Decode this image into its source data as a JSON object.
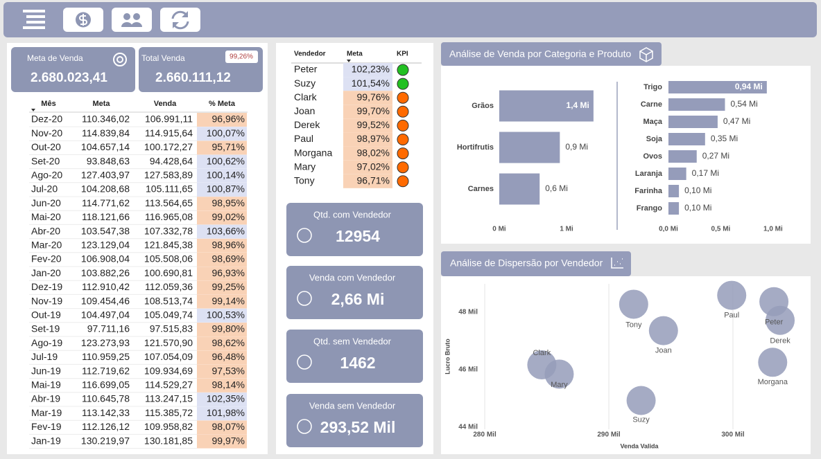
{
  "summary_cards": [
    {
      "label": "Meta de Venda",
      "value": "2.680.023,41"
    },
    {
      "label": "Total Venda",
      "value": "2.660.111,12",
      "badge": "99,26%"
    }
  ],
  "monthly_table": {
    "columns": [
      "Mês",
      "Meta",
      "Venda",
      "% Meta"
    ],
    "rows": [
      [
        "Dez-20",
        "110.346,02",
        "106.991,11",
        "96,96%"
      ],
      [
        "Nov-20",
        "114.839,84",
        "114.915,64",
        "100,07%"
      ],
      [
        "Out-20",
        "104.657,14",
        "100.172,27",
        "95,71%"
      ],
      [
        "Set-20",
        "93.848,63",
        "94.428,64",
        "100,62%"
      ],
      [
        "Ago-20",
        "127.403,97",
        "127.583,89",
        "100,14%"
      ],
      [
        "Jul-20",
        "104.208,68",
        "105.111,65",
        "100,87%"
      ],
      [
        "Jun-20",
        "114.771,62",
        "113.564,65",
        "98,95%"
      ],
      [
        "Mai-20",
        "118.121,66",
        "116.965,08",
        "99,02%"
      ],
      [
        "Abr-20",
        "103.547,38",
        "107.332,78",
        "103,66%"
      ],
      [
        "Mar-20",
        "123.129,04",
        "121.845,38",
        "98,96%"
      ],
      [
        "Fev-20",
        "106.908,04",
        "105.508,06",
        "98,69%"
      ],
      [
        "Jan-20",
        "103.882,26",
        "100.690,81",
        "96,93%"
      ],
      [
        "Dez-19",
        "112.910,42",
        "112.059,36",
        "99,25%"
      ],
      [
        "Nov-19",
        "109.454,46",
        "108.513,74",
        "99,14%"
      ],
      [
        "Out-19",
        "104.497,04",
        "105.049,74",
        "100,53%"
      ],
      [
        "Set-19",
        "97.711,16",
        "97.515,83",
        "99,80%"
      ],
      [
        "Ago-19",
        "123.273,93",
        "121.570,90",
        "98,62%"
      ],
      [
        "Jul-19",
        "110.959,25",
        "107.054,09",
        "96,48%"
      ],
      [
        "Jun-19",
        "112.719,62",
        "109.934,69",
        "97,53%"
      ],
      [
        "Mai-19",
        "116.699,05",
        "114.529,27",
        "98,14%"
      ],
      [
        "Abr-19",
        "110.645,78",
        "113.247,15",
        "102,35%"
      ],
      [
        "Mar-19",
        "113.142,33",
        "115.385,72",
        "101,98%"
      ],
      [
        "Fev-19",
        "112.126,12",
        "109.958,82",
        "98,07%"
      ],
      [
        "Jan-19",
        "130.219,97",
        "130.181,85",
        "99,97%"
      ]
    ]
  },
  "seller_table": {
    "columns": [
      "Vendedor",
      "Meta",
      "KPI"
    ],
    "rows": [
      [
        "Peter",
        "102,23%"
      ],
      [
        "Suzy",
        "101,54%"
      ],
      [
        "Clark",
        "99,76%"
      ],
      [
        "Joan",
        "99,70%"
      ],
      [
        "Derek",
        "99,52%"
      ],
      [
        "Paul",
        "98,97%"
      ],
      [
        "Morgana",
        "98,02%"
      ],
      [
        "Mary",
        "97,02%"
      ],
      [
        "Tony",
        "96,71%"
      ]
    ]
  },
  "seller_cards": [
    {
      "label": "Qtd. com Vendedor",
      "value": "12954"
    },
    {
      "label": "Venda com Vendedor",
      "value": "2,66 Mi"
    },
    {
      "label": "Qtd. sem Vendedor",
      "value": "1462"
    },
    {
      "label": "Venda sem Vendedor",
      "value": "293,52 Mil"
    }
  ],
  "chart_data": [
    {
      "type": "hbar",
      "title": "Análise de Venda por Categoria e Produto",
      "color": "#959cba",
      "categories": [
        "Grãos",
        "Hortifrutis",
        "Carnes"
      ],
      "values": [
        1.4,
        0.9,
        0.6
      ],
      "value_labels": [
        "1,4 Mi",
        "0,9 Mi",
        "0,6 Mi"
      ],
      "xlim": [
        0,
        1.7
      ],
      "xticks": [
        {
          "value": 0,
          "label": "0 Mi"
        },
        {
          "value": 1,
          "label": "1 Mi"
        }
      ]
    },
    {
      "type": "hbar",
      "color": "#959cba",
      "categories": [
        "Trigo",
        "Carne",
        "Maça",
        "Soja",
        "Ovos",
        "Laranja",
        "Farinha",
        "Frango"
      ],
      "values": [
        0.94,
        0.54,
        0.47,
        0.35,
        0.27,
        0.17,
        0.1,
        0.1
      ],
      "value_labels": [
        "0,94 Mi",
        "0,54 Mi",
        "0,47 Mi",
        "0,35 Mi",
        "0,27 Mi",
        "0,17 Mi",
        "0,10 Mi",
        "0,10 Mi"
      ],
      "xlim": [
        0,
        1.1
      ],
      "xticks": [
        {
          "value": 0,
          "label": "0,0 Mi"
        },
        {
          "value": 0.5,
          "label": "0,5 Mi"
        },
        {
          "value": 1,
          "label": "1,0 Mi"
        }
      ]
    },
    {
      "type": "scatter",
      "title": "Análise de Dispersão por Vendedor",
      "x_label": "Venda Valida",
      "y_label": "Lucro Bruto",
      "color": "#959cba",
      "point_labels": [
        "Tony",
        "Joan",
        "Paul",
        "Peter",
        "Derek",
        "Morgana",
        "Clark",
        "Mary",
        "Suzy"
      ],
      "x": [
        292000,
        294400,
        299900,
        303300,
        303800,
        303200,
        284600,
        286000,
        292600
      ],
      "values": [
        48270,
        47350,
        48580,
        48360,
        47710,
        46250,
        46160,
        45840,
        44920
      ],
      "xlim": [
        276700,
        306200
      ],
      "xticks": [
        {
          "value": 280000,
          "label": "280 Mil"
        },
        {
          "value": 290000,
          "label": "290 Mil"
        },
        {
          "value": 300000,
          "label": "300 Mil"
        }
      ],
      "ylim": [
        43800,
        49100
      ],
      "yticks": [
        {
          "value": 44000,
          "label": "44 Mil"
        },
        {
          "value": 46000,
          "label": "46 Mil"
        },
        {
          "value": 48000,
          "label": "48 Mil"
        }
      ],
      "grid": true
    }
  ]
}
